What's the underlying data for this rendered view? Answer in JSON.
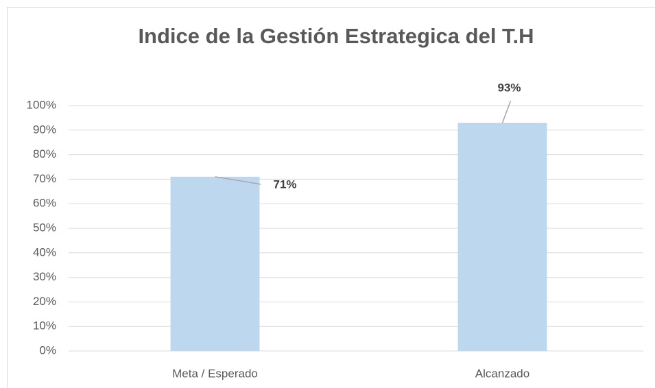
{
  "chart_data": {
    "type": "bar",
    "title": "Indice de la Gestión Estrategica del T.H",
    "categories": [
      "Meta / Esperado",
      "Alcanzado"
    ],
    "values": [
      71,
      93
    ],
    "value_labels": [
      "71%",
      "93%"
    ],
    "color": "#bdd7ee",
    "ylim": [
      0,
      100
    ],
    "yticks": [
      {
        "value": 0,
        "label": "0%"
      },
      {
        "value": 10,
        "label": "10%"
      },
      {
        "value": 20,
        "label": "20%"
      },
      {
        "value": 30,
        "label": "30%"
      },
      {
        "value": 40,
        "label": "40%"
      },
      {
        "value": 50,
        "label": "50%"
      },
      {
        "value": 60,
        "label": "60%"
      },
      {
        "value": 70,
        "label": "70%"
      },
      {
        "value": 80,
        "label": "80%"
      },
      {
        "value": 90,
        "label": "90%"
      },
      {
        "value": 100,
        "label": "100%"
      }
    ],
    "grid": true
  }
}
